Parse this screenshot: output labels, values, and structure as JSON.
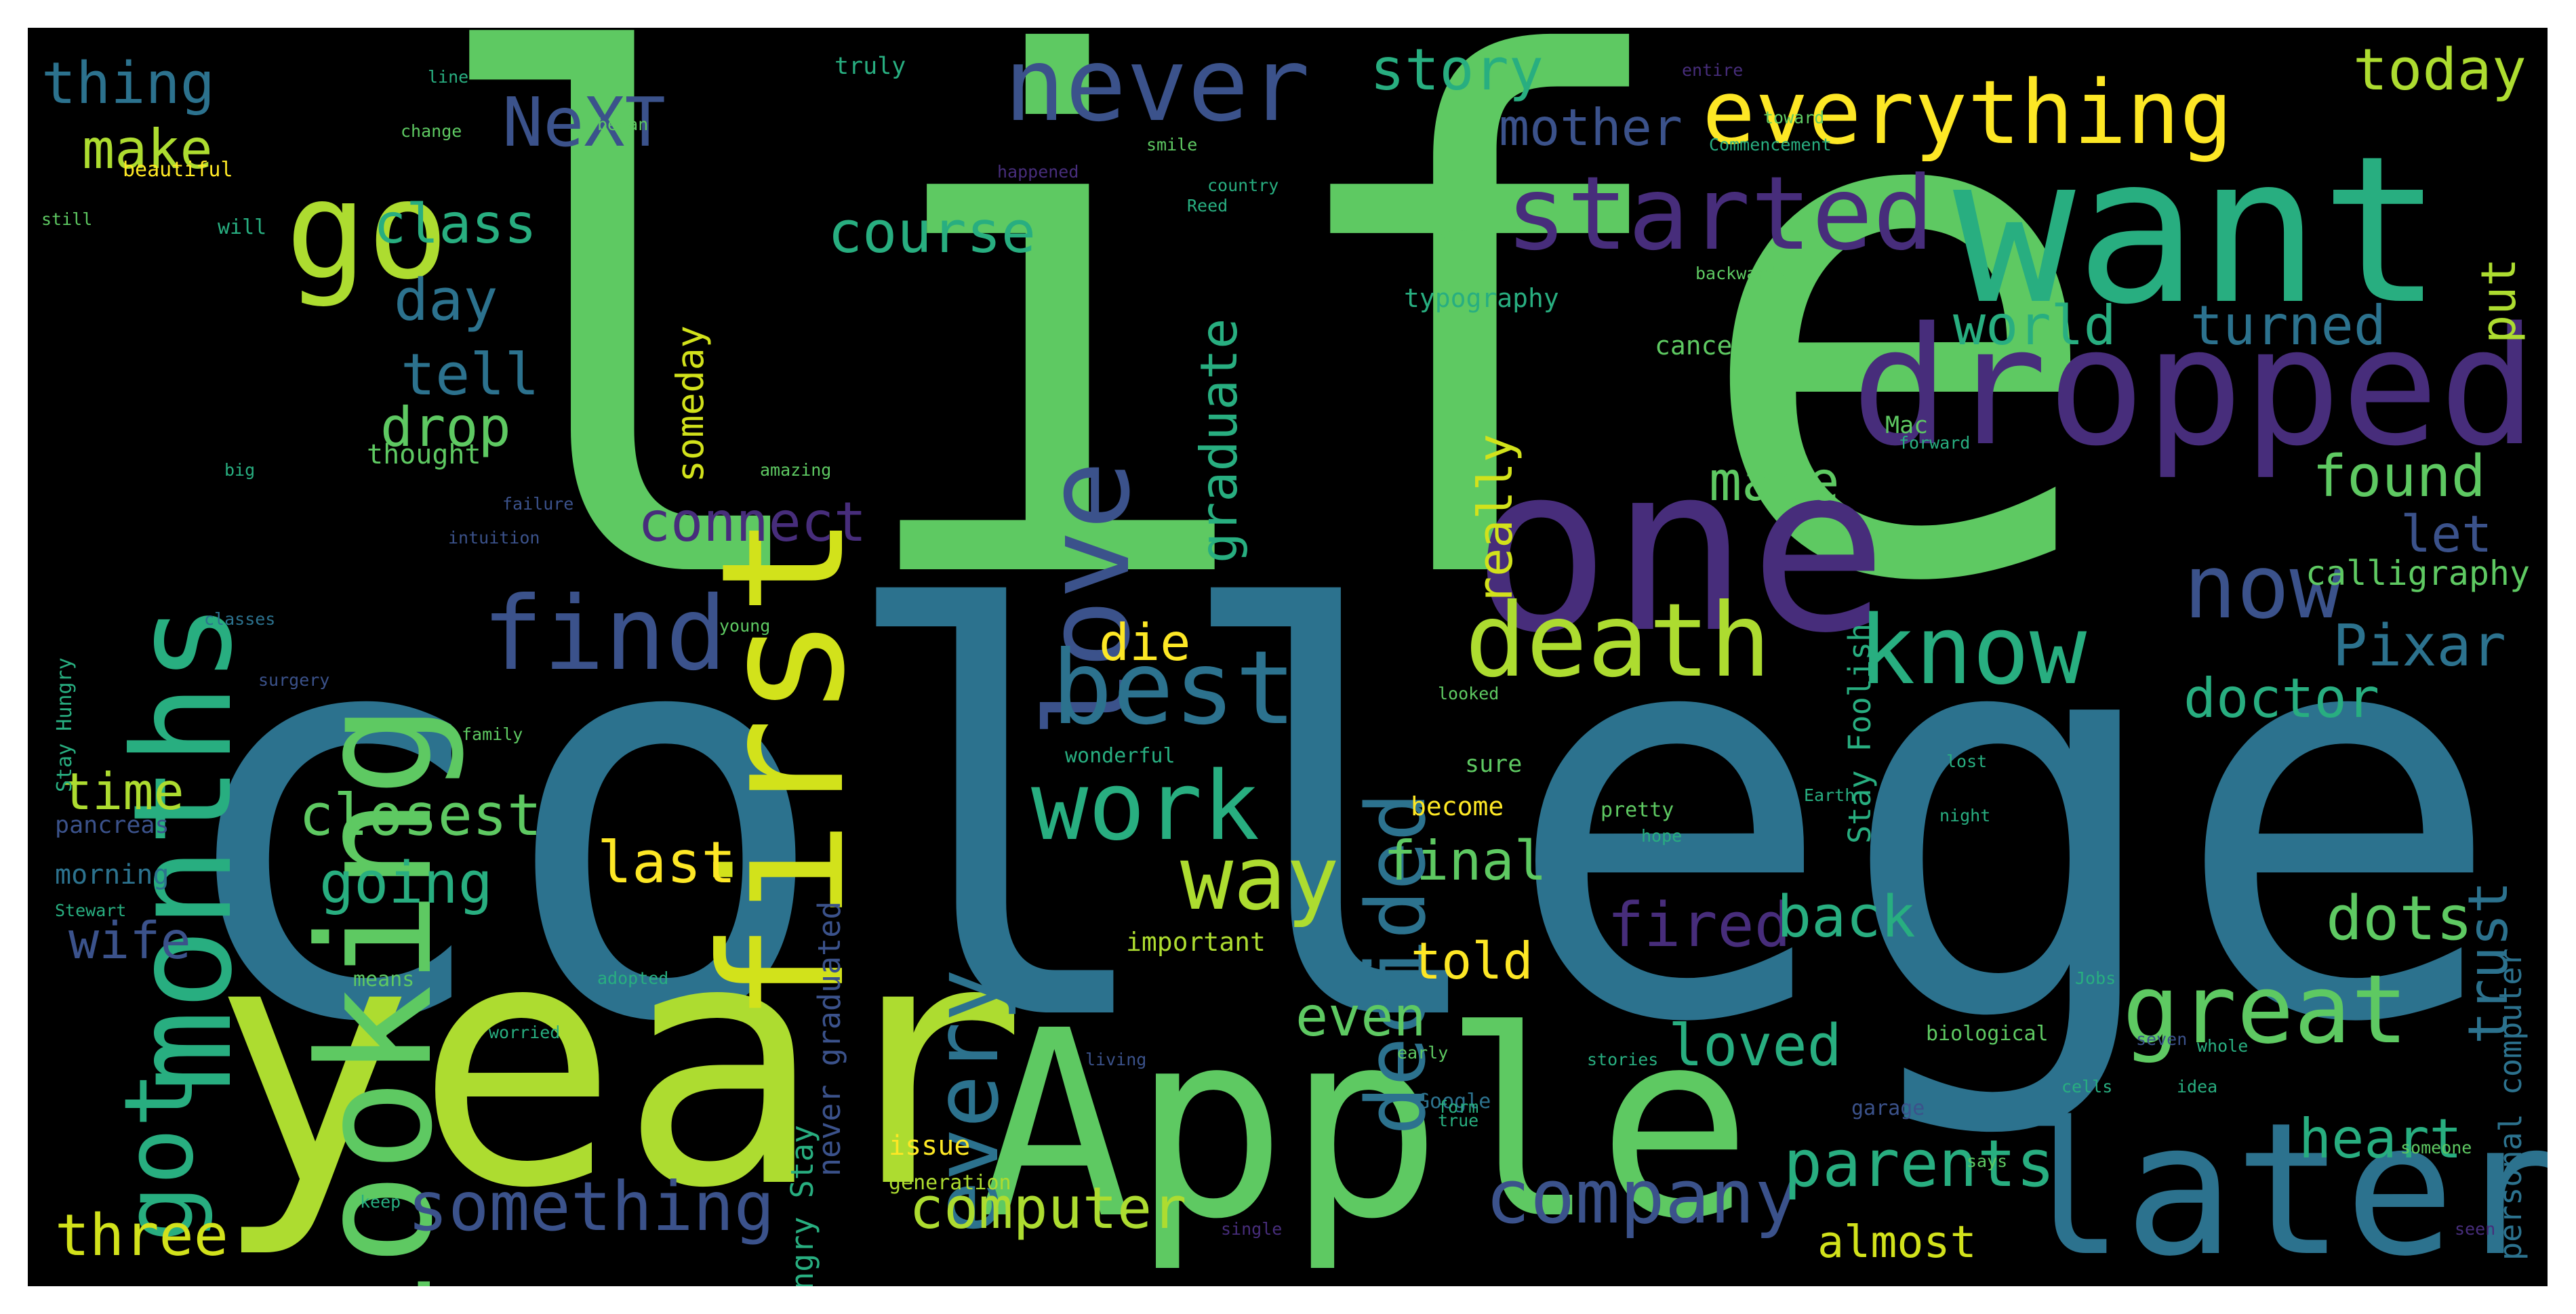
{
  "background": "#000000",
  "palette": {
    "green": "#5ec962",
    "teal": "#21918c",
    "blue": "#3b528b",
    "purple": "#472d7b",
    "lime": "#addc30",
    "yellow": "#fde725",
    "aqua": "#28ae80",
    "darkblue": "#2c728e"
  },
  "words": [
    {
      "text": "life",
      "color": "#5ec962"
    },
    {
      "text": "college",
      "color": "#2c728e"
    },
    {
      "text": "year",
      "color": "#addc30"
    },
    {
      "text": "Apple",
      "color": "#5ec962"
    },
    {
      "text": "one",
      "color": "#472d7b"
    },
    {
      "text": "want",
      "color": "#28ae80"
    },
    {
      "text": "later",
      "color": "#2c728e"
    },
    {
      "text": "dropped",
      "color": "#472d7b"
    },
    {
      "text": "first",
      "color": "#d2e21b"
    },
    {
      "text": "looking",
      "color": "#5ec962"
    },
    {
      "text": "months",
      "color": "#28ae80"
    },
    {
      "text": "go",
      "color": "#addc30"
    },
    {
      "text": "never",
      "color": "#3b528b"
    },
    {
      "text": "everything",
      "color": "#fde725"
    },
    {
      "text": "love",
      "color": "#3b528b"
    },
    {
      "text": "started",
      "color": "#472d7b"
    },
    {
      "text": "death",
      "color": "#addc30"
    },
    {
      "text": "know",
      "color": "#28ae80"
    },
    {
      "text": "now",
      "color": "#3b528b"
    },
    {
      "text": "best",
      "color": "#2c728e"
    },
    {
      "text": "find",
      "color": "#3b528b"
    },
    {
      "text": "work",
      "color": "#28ae80"
    },
    {
      "text": "every",
      "color": "#2c728e"
    },
    {
      "text": "way",
      "color": "#addc30"
    },
    {
      "text": "decided",
      "color": "#2c728e"
    },
    {
      "text": "great",
      "color": "#5ec962"
    },
    {
      "text": "company",
      "color": "#3b528b"
    },
    {
      "text": "something",
      "color": "#3b528b"
    },
    {
      "text": "computer",
      "color": "#addc30"
    },
    {
      "text": "parents",
      "color": "#28ae80"
    },
    {
      "text": "got",
      "color": "#28ae80"
    },
    {
      "text": "NeXT",
      "color": "#3b528b"
    },
    {
      "text": "story",
      "color": "#28ae80"
    },
    {
      "text": "today",
      "color": "#addc30"
    },
    {
      "text": "mother",
      "color": "#3b528b"
    },
    {
      "text": "course",
      "color": "#28ae80"
    },
    {
      "text": "thing",
      "color": "#2c728e"
    },
    {
      "text": "make",
      "color": "#addc30"
    },
    {
      "text": "class",
      "color": "#28ae80"
    },
    {
      "text": "day",
      "color": "#2c728e"
    },
    {
      "text": "tell",
      "color": "#2c728e"
    },
    {
      "text": "drop",
      "color": "#5ec962"
    },
    {
      "text": "closest",
      "color": "#5ec962"
    },
    {
      "text": "going",
      "color": "#28ae80"
    },
    {
      "text": "time",
      "color": "#addc30"
    },
    {
      "text": "wife",
      "color": "#3b528b"
    },
    {
      "text": "three",
      "color": "#d2e21b"
    },
    {
      "text": "last",
      "color": "#fde725"
    },
    {
      "text": "connect",
      "color": "#472d7b"
    },
    {
      "text": "world",
      "color": "#28ae80"
    },
    {
      "text": "turned",
      "color": "#2c728e"
    },
    {
      "text": "found",
      "color": "#5ec962"
    },
    {
      "text": "let",
      "color": "#3b528b"
    },
    {
      "text": "calligraphy",
      "color": "#5ec962"
    },
    {
      "text": "Pixar",
      "color": "#2c728e"
    },
    {
      "text": "doctor",
      "color": "#28ae80"
    },
    {
      "text": "made",
      "color": "#5ec962"
    },
    {
      "text": "graduate",
      "color": "#28ae80"
    },
    {
      "text": "really",
      "color": "#d2e21b"
    },
    {
      "text": "die",
      "color": "#fde725"
    },
    {
      "text": "final",
      "color": "#5ec962"
    },
    {
      "text": "told",
      "color": "#fde725"
    },
    {
      "text": "fired",
      "color": "#472d7b"
    },
    {
      "text": "back",
      "color": "#28ae80"
    },
    {
      "text": "dots",
      "color": "#5ec962"
    },
    {
      "text": "heart",
      "color": "#28ae80"
    },
    {
      "text": "trust",
      "color": "#2c728e"
    },
    {
      "text": "loved",
      "color": "#28ae80"
    },
    {
      "text": "even",
      "color": "#5ec962"
    },
    {
      "text": "almost",
      "color": "#d2e21b"
    },
    {
      "text": "put",
      "color": "#addc30"
    },
    {
      "text": "someday",
      "color": "#d2e21b"
    },
    {
      "text": "Stay Foolish",
      "color": "#28ae80"
    },
    {
      "text": "never graduated",
      "color": "#3b528b"
    },
    {
      "text": "Hungry Stay",
      "color": "#28ae80"
    },
    {
      "text": "personal computer",
      "color": "#2c728e"
    },
    {
      "text": "typography",
      "color": "#28ae80"
    },
    {
      "text": "cancer",
      "color": "#5ec962"
    },
    {
      "text": "important",
      "color": "#addc30"
    },
    {
      "text": "become",
      "color": "#fde725"
    },
    {
      "text": "pancreas",
      "color": "#3b528b"
    },
    {
      "text": "morning",
      "color": "#2c728e"
    },
    {
      "text": "issue",
      "color": "#fde725"
    },
    {
      "text": "generation",
      "color": "#addc30"
    },
    {
      "text": "truly",
      "color": "#28ae80"
    },
    {
      "text": "beautiful",
      "color": "#fde725"
    },
    {
      "text": "Google",
      "color": "#2c728e"
    },
    {
      "text": "Mac",
      "color": "#5ec962"
    },
    {
      "text": "thought",
      "color": "#5ec962"
    },
    {
      "text": "wonderful",
      "color": "#28ae80"
    },
    {
      "text": "biological",
      "color": "#5ec962"
    },
    {
      "text": "adopted",
      "color": "#28ae80"
    },
    {
      "text": "garage",
      "color": "#3b528b"
    },
    {
      "text": "failure",
      "color": "#3b528b"
    },
    {
      "text": "amazing",
      "color": "#5ec962"
    },
    {
      "text": "intuition",
      "color": "#3b528b"
    },
    {
      "text": "forward",
      "color": "#28ae80"
    },
    {
      "text": "backwards",
      "color": "#5ec962"
    },
    {
      "text": "Stay Hungry",
      "color": "#28ae80"
    },
    {
      "text": "family",
      "color": "#5ec962"
    },
    {
      "text": "classes",
      "color": "#2c728e"
    },
    {
      "text": "surgery",
      "color": "#3b528b"
    },
    {
      "text": "sure",
      "color": "#5ec962"
    },
    {
      "text": "pretty",
      "color": "#5ec962"
    },
    {
      "text": "night",
      "color": "#28ae80"
    },
    {
      "text": "someone",
      "color": "#5ec962"
    },
    {
      "text": "early",
      "color": "#5ec962"
    },
    {
      "text": "means",
      "color": "#5ec962"
    },
    {
      "text": "seen",
      "color": "#472d7b"
    },
    {
      "text": "began",
      "color": "#5ec962"
    },
    {
      "text": "change",
      "color": "#5ec962"
    },
    {
      "text": "still",
      "color": "#5ec962"
    },
    {
      "text": "will",
      "color": "#28ae80"
    },
    {
      "text": "idea",
      "color": "#28ae80"
    },
    {
      "text": "Jobs",
      "color": "#28ae80"
    },
    {
      "text": "Earth",
      "color": "#28ae80"
    },
    {
      "text": "living",
      "color": "#3b528b"
    },
    {
      "text": "stories",
      "color": "#28ae80"
    },
    {
      "text": "single",
      "color": "#472d7b"
    },
    {
      "text": "keep",
      "color": "#28ae80"
    },
    {
      "text": "young",
      "color": "#5ec962"
    },
    {
      "text": "looked",
      "color": "#5ec962"
    },
    {
      "text": "Stewart",
      "color": "#28ae80"
    },
    {
      "text": "Commencement",
      "color": "#28ae80"
    },
    {
      "text": "happened",
      "color": "#472d7b"
    },
    {
      "text": "Reed",
      "color": "#28ae80"
    },
    {
      "text": "smile",
      "color": "#5ec962"
    },
    {
      "text": "country",
      "color": "#28ae80"
    },
    {
      "text": "line",
      "color": "#28ae80"
    },
    {
      "text": "entire",
      "color": "#472d7b"
    },
    {
      "text": "went",
      "color": "#5ec962"
    },
    {
      "text": "toward",
      "color": "#5ec962"
    },
    {
      "text": "worried",
      "color": "#28ae80"
    },
    {
      "text": "true",
      "color": "#28ae80"
    },
    {
      "text": "says",
      "color": "#5ec962"
    },
    {
      "text": "form",
      "color": "#28ae80"
    },
    {
      "text": "seven",
      "color": "#3b528b"
    },
    {
      "text": "big",
      "color": "#28ae80"
    },
    {
      "text": "hope",
      "color": "#28ae80"
    },
    {
      "text": "cells",
      "color": "#28ae80"
    },
    {
      "text": "whole",
      "color": "#28ae80"
    },
    {
      "text": "lost",
      "color": "#28ae80"
    }
  ]
}
